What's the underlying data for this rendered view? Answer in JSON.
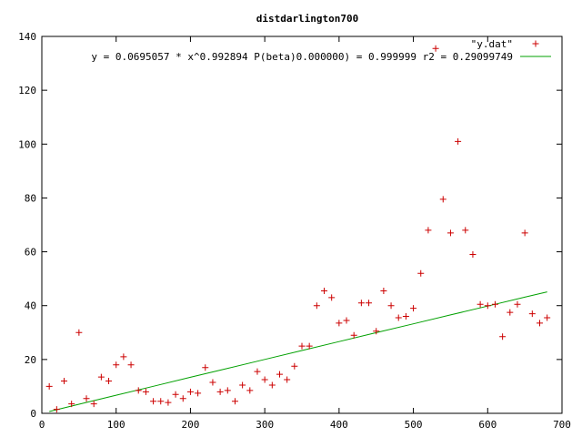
{
  "chart_data": {
    "type": "scatter",
    "title": "distdarlington700",
    "xlabel": "",
    "ylabel": "",
    "xlim": [
      0,
      700
    ],
    "ylim": [
      0,
      140
    ],
    "x_ticks": [
      0,
      100,
      200,
      300,
      400,
      500,
      600,
      700
    ],
    "y_ticks": [
      0,
      20,
      40,
      60,
      80,
      100,
      120,
      140
    ],
    "grid": false,
    "legend_position": "top-right",
    "series": [
      {
        "name": "\"y.dat\"",
        "kind": "points",
        "marker": "plus",
        "color": "#cc0000",
        "points": [
          [
            10,
            10
          ],
          [
            20,
            1.5
          ],
          [
            30,
            12
          ],
          [
            40,
            3.5
          ],
          [
            50,
            30
          ],
          [
            60,
            5.5
          ],
          [
            70,
            3.5
          ],
          [
            80,
            13.5
          ],
          [
            90,
            12
          ],
          [
            100,
            18
          ],
          [
            110,
            21
          ],
          [
            120,
            18
          ],
          [
            130,
            8.5
          ],
          [
            140,
            8
          ],
          [
            150,
            4.5
          ],
          [
            160,
            4.5
          ],
          [
            170,
            4
          ],
          [
            180,
            7
          ],
          [
            190,
            5.5
          ],
          [
            200,
            8
          ],
          [
            210,
            7.5
          ],
          [
            220,
            17
          ],
          [
            230,
            11.5
          ],
          [
            240,
            8
          ],
          [
            250,
            8.5
          ],
          [
            260,
            4.5
          ],
          [
            270,
            10.5
          ],
          [
            280,
            8.5
          ],
          [
            290,
            15.5
          ],
          [
            300,
            12.5
          ],
          [
            310,
            10.5
          ],
          [
            320,
            14.5
          ],
          [
            330,
            12.5
          ],
          [
            340,
            17.5
          ],
          [
            350,
            25
          ],
          [
            360,
            25
          ],
          [
            370,
            40
          ],
          [
            380,
            45.5
          ],
          [
            390,
            43
          ],
          [
            400,
            33.5
          ],
          [
            410,
            34.5
          ],
          [
            420,
            29
          ],
          [
            430,
            41
          ],
          [
            440,
            41
          ],
          [
            450,
            30.5
          ],
          [
            460,
            45.5
          ],
          [
            470,
            40
          ],
          [
            480,
            35.5
          ],
          [
            490,
            36
          ],
          [
            500,
            39
          ],
          [
            510,
            52
          ],
          [
            520,
            68
          ],
          [
            530,
            135.5
          ],
          [
            540,
            79.5
          ],
          [
            550,
            67
          ],
          [
            560,
            101
          ],
          [
            570,
            68
          ],
          [
            580,
            59
          ],
          [
            590,
            40.5
          ],
          [
            600,
            40
          ],
          [
            610,
            40.5
          ],
          [
            620,
            28.5
          ],
          [
            630,
            37.5
          ],
          [
            640,
            40.5
          ],
          [
            650,
            67
          ],
          [
            660,
            37
          ],
          [
            670,
            33.5
          ],
          [
            680,
            35.5
          ]
        ]
      },
      {
        "name": "y = 0.0695057 * x^0.992894 P(beta)0.000000) = 0.999999 r2 = 0.29099749",
        "kind": "line",
        "color": "#00a000",
        "points": [
          [
            10,
            0.68
          ],
          [
            50,
            3.37
          ],
          [
            100,
            6.72
          ],
          [
            150,
            10.05
          ],
          [
            200,
            13.38
          ],
          [
            250,
            16.7
          ],
          [
            300,
            20.02
          ],
          [
            350,
            23.33
          ],
          [
            400,
            26.64
          ],
          [
            450,
            29.95
          ],
          [
            500,
            33.25
          ],
          [
            550,
            36.55
          ],
          [
            600,
            39.85
          ],
          [
            650,
            43.15
          ],
          [
            680,
            45.12
          ]
        ]
      }
    ]
  }
}
